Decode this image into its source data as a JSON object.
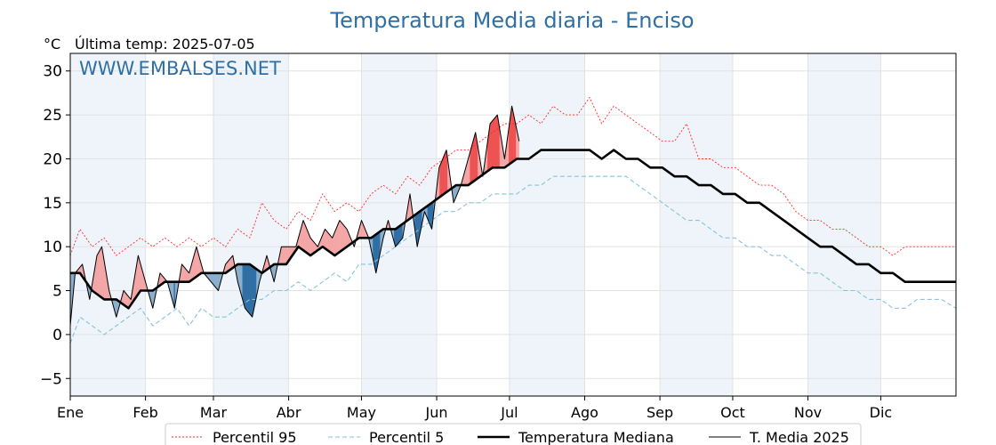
{
  "header": {
    "title": "Temperatura Media diaria - Enciso",
    "unit": "°C",
    "last_temp": "Última temp: 2025-07-05",
    "watermark": "WWW.EMBALSES.NET"
  },
  "colors": {
    "title": "#2f6fa3",
    "p95": "#ff2a2a",
    "p5": "#89c2d9",
    "median": "#000000",
    "year": "#000000",
    "above_fill": "#f4a6a6",
    "above_fill_strong": "#ee5050",
    "below_fill": "#8aaecd",
    "below_fill_strong": "#2e6da4",
    "month_band": "#eef4fa"
  },
  "chart_data": {
    "type": "line",
    "title": "Temperatura Media diaria - Enciso",
    "ylabel": "°C",
    "ylim": [
      -7,
      32
    ],
    "yticks": [
      -5,
      0,
      5,
      10,
      15,
      20,
      25,
      30
    ],
    "ytick_labels": [
      "−5",
      "0",
      "5",
      "10",
      "15",
      "20",
      "25",
      "30"
    ],
    "xlim": [
      1,
      366
    ],
    "month_labels": [
      "Ene",
      "Feb",
      "Mar",
      "Abr",
      "May",
      "Jun",
      "Jul",
      "Ago",
      "Sep",
      "Oct",
      "Nov",
      "Dic"
    ],
    "month_start_days": [
      1,
      32,
      60,
      91,
      121,
      152,
      182,
      213,
      244,
      274,
      305,
      335
    ],
    "grid": true,
    "legend_position": "bottom",
    "series": [
      {
        "name": "Percentil 95",
        "style": "dotted-red",
        "points": [
          [
            1,
            9
          ],
          [
            5,
            12
          ],
          [
            10,
            10
          ],
          [
            15,
            11
          ],
          [
            20,
            9
          ],
          [
            25,
            10
          ],
          [
            30,
            11
          ],
          [
            35,
            10
          ],
          [
            40,
            11
          ],
          [
            45,
            10
          ],
          [
            50,
            11
          ],
          [
            55,
            10
          ],
          [
            60,
            11
          ],
          [
            65,
            10
          ],
          [
            70,
            12
          ],
          [
            75,
            11
          ],
          [
            80,
            15
          ],
          [
            85,
            13
          ],
          [
            90,
            12
          ],
          [
            95,
            14
          ],
          [
            100,
            13
          ],
          [
            105,
            16
          ],
          [
            110,
            14
          ],
          [
            115,
            15
          ],
          [
            120,
            14
          ],
          [
            125,
            16
          ],
          [
            130,
            17
          ],
          [
            135,
            16
          ],
          [
            140,
            18
          ],
          [
            145,
            17
          ],
          [
            150,
            19
          ],
          [
            155,
            20
          ],
          [
            160,
            21
          ],
          [
            165,
            21
          ],
          [
            170,
            22
          ],
          [
            175,
            23
          ],
          [
            180,
            24
          ],
          [
            185,
            24
          ],
          [
            190,
            25
          ],
          [
            195,
            24
          ],
          [
            200,
            26
          ],
          [
            205,
            25
          ],
          [
            210,
            25
          ],
          [
            215,
            27
          ],
          [
            220,
            24
          ],
          [
            225,
            26
          ],
          [
            230,
            25
          ],
          [
            235,
            24
          ],
          [
            240,
            23
          ],
          [
            245,
            22
          ],
          [
            250,
            22
          ],
          [
            255,
            24
          ],
          [
            260,
            20
          ],
          [
            265,
            20
          ],
          [
            270,
            19
          ],
          [
            275,
            19
          ],
          [
            280,
            18
          ],
          [
            285,
            17
          ],
          [
            290,
            17
          ],
          [
            295,
            16
          ],
          [
            300,
            14
          ],
          [
            305,
            13
          ],
          [
            310,
            13
          ],
          [
            315,
            12
          ],
          [
            320,
            12
          ],
          [
            325,
            11
          ],
          [
            330,
            10
          ],
          [
            335,
            10
          ],
          [
            340,
            9
          ],
          [
            345,
            10
          ],
          [
            350,
            10
          ],
          [
            355,
            10
          ],
          [
            360,
            10
          ],
          [
            366,
            10
          ]
        ]
      },
      {
        "name": "Percentil 5",
        "style": "dashed-lightblue",
        "points": [
          [
            1,
            -1
          ],
          [
            5,
            2
          ],
          [
            10,
            1
          ],
          [
            15,
            0
          ],
          [
            20,
            1
          ],
          [
            25,
            2
          ],
          [
            30,
            3
          ],
          [
            35,
            1
          ],
          [
            40,
            2
          ],
          [
            45,
            3
          ],
          [
            50,
            1
          ],
          [
            55,
            3
          ],
          [
            60,
            2
          ],
          [
            65,
            2
          ],
          [
            70,
            3
          ],
          [
            75,
            4
          ],
          [
            80,
            4
          ],
          [
            85,
            5
          ],
          [
            90,
            5
          ],
          [
            95,
            6
          ],
          [
            100,
            5
          ],
          [
            105,
            6
          ],
          [
            110,
            7
          ],
          [
            115,
            6
          ],
          [
            120,
            8
          ],
          [
            125,
            8
          ],
          [
            130,
            9
          ],
          [
            135,
            10
          ],
          [
            140,
            11
          ],
          [
            145,
            12
          ],
          [
            150,
            13
          ],
          [
            155,
            14
          ],
          [
            160,
            14
          ],
          [
            165,
            15
          ],
          [
            170,
            15
          ],
          [
            175,
            16
          ],
          [
            180,
            16
          ],
          [
            185,
            16
          ],
          [
            190,
            17
          ],
          [
            195,
            17
          ],
          [
            200,
            18
          ],
          [
            205,
            18
          ],
          [
            210,
            18
          ],
          [
            215,
            18
          ],
          [
            220,
            18
          ],
          [
            225,
            18
          ],
          [
            230,
            18
          ],
          [
            235,
            17
          ],
          [
            240,
            16
          ],
          [
            245,
            15
          ],
          [
            250,
            14
          ],
          [
            255,
            13
          ],
          [
            260,
            13
          ],
          [
            265,
            12
          ],
          [
            270,
            11
          ],
          [
            275,
            11
          ],
          [
            280,
            10
          ],
          [
            285,
            10
          ],
          [
            290,
            9
          ],
          [
            295,
            9
          ],
          [
            300,
            8
          ],
          [
            305,
            7
          ],
          [
            310,
            7
          ],
          [
            315,
            6
          ],
          [
            320,
            5
          ],
          [
            325,
            5
          ],
          [
            330,
            4
          ],
          [
            335,
            4
          ],
          [
            340,
            3
          ],
          [
            345,
            3
          ],
          [
            350,
            4
          ],
          [
            355,
            4
          ],
          [
            360,
            4
          ],
          [
            366,
            3
          ]
        ]
      },
      {
        "name": "Temperatura Mediana",
        "style": "solid-thick-black",
        "points": [
          [
            1,
            7
          ],
          [
            5,
            7
          ],
          [
            10,
            5
          ],
          [
            15,
            4
          ],
          [
            20,
            4
          ],
          [
            25,
            3
          ],
          [
            30,
            5
          ],
          [
            35,
            5
          ],
          [
            40,
            6
          ],
          [
            45,
            6
          ],
          [
            50,
            6
          ],
          [
            55,
            7
          ],
          [
            60,
            7
          ],
          [
            65,
            7
          ],
          [
            70,
            8
          ],
          [
            75,
            8
          ],
          [
            80,
            7
          ],
          [
            85,
            8
          ],
          [
            90,
            8
          ],
          [
            95,
            10
          ],
          [
            100,
            9
          ],
          [
            105,
            10
          ],
          [
            110,
            9
          ],
          [
            115,
            10
          ],
          [
            120,
            11
          ],
          [
            125,
            11
          ],
          [
            130,
            12
          ],
          [
            135,
            12
          ],
          [
            140,
            13
          ],
          [
            145,
            14
          ],
          [
            150,
            15
          ],
          [
            155,
            16
          ],
          [
            160,
            17
          ],
          [
            165,
            17
          ],
          [
            170,
            18
          ],
          [
            175,
            19
          ],
          [
            180,
            19
          ],
          [
            185,
            20
          ],
          [
            190,
            20
          ],
          [
            195,
            21
          ],
          [
            200,
            21
          ],
          [
            205,
            21
          ],
          [
            210,
            21
          ],
          [
            215,
            21
          ],
          [
            220,
            20
          ],
          [
            225,
            21
          ],
          [
            230,
            20
          ],
          [
            235,
            20
          ],
          [
            240,
            19
          ],
          [
            245,
            19
          ],
          [
            250,
            18
          ],
          [
            255,
            18
          ],
          [
            260,
            17
          ],
          [
            265,
            17
          ],
          [
            270,
            16
          ],
          [
            275,
            16
          ],
          [
            280,
            15
          ],
          [
            285,
            15
          ],
          [
            290,
            14
          ],
          [
            295,
            13
          ],
          [
            300,
            12
          ],
          [
            305,
            11
          ],
          [
            310,
            10
          ],
          [
            315,
            10
          ],
          [
            320,
            9
          ],
          [
            325,
            8
          ],
          [
            330,
            8
          ],
          [
            335,
            7
          ],
          [
            340,
            7
          ],
          [
            345,
            6
          ],
          [
            350,
            6
          ],
          [
            355,
            6
          ],
          [
            360,
            6
          ],
          [
            366,
            6
          ]
        ]
      },
      {
        "name": "T. Media 2025",
        "style": "solid-thin-black",
        "points": [
          [
            1,
            1
          ],
          [
            3,
            7
          ],
          [
            6,
            8
          ],
          [
            9,
            4
          ],
          [
            12,
            9
          ],
          [
            14,
            10
          ],
          [
            17,
            5
          ],
          [
            20,
            2
          ],
          [
            23,
            5
          ],
          [
            26,
            4
          ],
          [
            29,
            9
          ],
          [
            32,
            6
          ],
          [
            35,
            3
          ],
          [
            38,
            7
          ],
          [
            41,
            6
          ],
          [
            44,
            3
          ],
          [
            47,
            8
          ],
          [
            50,
            7
          ],
          [
            53,
            10
          ],
          [
            56,
            7
          ],
          [
            59,
            6
          ],
          [
            62,
            5
          ],
          [
            65,
            8
          ],
          [
            68,
            9
          ],
          [
            70,
            6
          ],
          [
            73,
            3
          ],
          [
            76,
            2
          ],
          [
            79,
            6
          ],
          [
            82,
            9
          ],
          [
            85,
            6
          ],
          [
            88,
            10
          ],
          [
            91,
            10
          ],
          [
            94,
            10
          ],
          [
            97,
            13
          ],
          [
            100,
            11
          ],
          [
            103,
            10
          ],
          [
            106,
            12
          ],
          [
            109,
            11
          ],
          [
            112,
            13
          ],
          [
            115,
            12
          ],
          [
            118,
            10
          ],
          [
            121,
            13
          ],
          [
            124,
            11
          ],
          [
            127,
            7
          ],
          [
            130,
            11
          ],
          [
            132,
            13
          ],
          [
            135,
            10
          ],
          [
            138,
            11
          ],
          [
            141,
            16
          ],
          [
            144,
            10
          ],
          [
            147,
            14
          ],
          [
            150,
            12
          ],
          [
            153,
            19
          ],
          [
            156,
            21
          ],
          [
            159,
            15
          ],
          [
            162,
            17
          ],
          [
            165,
            20
          ],
          [
            168,
            23
          ],
          [
            171,
            18
          ],
          [
            174,
            24
          ],
          [
            177,
            25
          ],
          [
            180,
            20
          ],
          [
            183,
            26
          ],
          [
            186,
            22
          ]
        ]
      }
    ]
  },
  "legend": {
    "items": [
      {
        "label": "Percentil 95"
      },
      {
        "label": "Percentil 5"
      },
      {
        "label": "Temperatura Mediana"
      },
      {
        "label": "T. Media 2025"
      }
    ]
  }
}
